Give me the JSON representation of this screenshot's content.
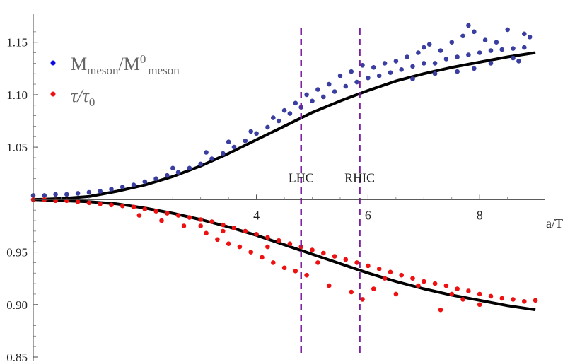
{
  "chart_data": {
    "type": "scatter",
    "xlabel": "a/T",
    "ylabel": "",
    "xlim": [
      0,
      9.1
    ],
    "ylim": [
      0.85,
      1.17
    ],
    "x_ticks": [
      {
        "value": 4,
        "label": "4"
      },
      {
        "value": 6,
        "label": "6"
      },
      {
        "value": 8,
        "label": "8"
      }
    ],
    "y_ticks": [
      {
        "value": 0.85,
        "label": "0.85"
      },
      {
        "value": 0.9,
        "label": "0.90"
      },
      {
        "value": 0.95,
        "label": "0.95"
      },
      {
        "value": 1.05,
        "label": "1.05"
      },
      {
        "value": 1.1,
        "label": "1.10"
      },
      {
        "value": 1.15,
        "label": "1.15"
      }
    ],
    "baseline_y": 1.0,
    "legend": {
      "placement": "top-left",
      "entries": [
        {
          "name": "M_meson/M^0_meson",
          "base": "M",
          "sub1": "meson",
          "slash": "/M",
          "sup": "0",
          "sub2": "meson",
          "color": "#0a0ae6"
        },
        {
          "name": "τ/τ0",
          "base": "τ/τ",
          "sub": "0",
          "color": "#ee1111"
        }
      ]
    },
    "series": [
      {
        "name": "M_meson/M^0_meson",
        "color": "#3a3ea0",
        "points": [
          [
            0.0,
            1.004
          ],
          [
            0.2,
            1.004
          ],
          [
            0.4,
            1.005
          ],
          [
            0.6,
            1.005
          ],
          [
            0.8,
            1.006
          ],
          [
            1.0,
            1.007
          ],
          [
            1.2,
            1.008
          ],
          [
            1.4,
            1.01
          ],
          [
            1.6,
            1.012
          ],
          [
            1.8,
            1.014
          ],
          [
            2.0,
            1.017
          ],
          [
            2.2,
            1.02
          ],
          [
            2.4,
            1.023
          ],
          [
            2.6,
            1.026
          ],
          [
            2.8,
            1.03
          ],
          [
            3.0,
            1.034
          ],
          [
            3.2,
            1.039
          ],
          [
            3.4,
            1.044
          ],
          [
            3.6,
            1.05
          ],
          [
            3.8,
            1.056
          ],
          [
            4.0,
            1.063
          ],
          [
            4.2,
            1.069
          ],
          [
            4.4,
            1.075
          ],
          [
            4.6,
            1.082
          ],
          [
            4.8,
            1.088
          ],
          [
            5.0,
            1.094
          ],
          [
            5.2,
            1.098
          ],
          [
            5.4,
            1.103
          ],
          [
            5.6,
            1.108
          ],
          [
            5.8,
            1.112
          ],
          [
            6.0,
            1.116
          ],
          [
            6.2,
            1.118
          ],
          [
            6.4,
            1.121
          ],
          [
            6.6,
            1.124
          ],
          [
            6.8,
            1.127
          ],
          [
            7.0,
            1.13
          ],
          [
            7.2,
            1.13
          ],
          [
            7.4,
            1.134
          ],
          [
            7.6,
            1.136
          ],
          [
            7.8,
            1.138
          ],
          [
            8.0,
            1.14
          ],
          [
            8.2,
            1.142
          ],
          [
            8.4,
            1.143
          ],
          [
            8.6,
            1.144
          ],
          [
            8.8,
            1.145
          ],
          [
            2.5,
            1.03
          ],
          [
            3.1,
            1.045
          ],
          [
            3.5,
            1.055
          ],
          [
            3.9,
            1.065
          ],
          [
            4.3,
            1.078
          ],
          [
            4.5,
            1.085
          ],
          [
            4.7,
            1.092
          ],
          [
            4.9,
            1.1
          ],
          [
            5.1,
            1.105
          ],
          [
            5.3,
            1.11
          ],
          [
            5.5,
            1.118
          ],
          [
            5.7,
            1.122
          ],
          [
            5.9,
            1.128
          ],
          [
            6.1,
            1.126
          ],
          [
            6.3,
            1.13
          ],
          [
            6.5,
            1.132
          ],
          [
            6.7,
            1.136
          ],
          [
            6.9,
            1.14
          ],
          [
            7.0,
            1.145
          ],
          [
            7.1,
            1.148
          ],
          [
            7.3,
            1.142
          ],
          [
            7.5,
            1.15
          ],
          [
            7.7,
            1.156
          ],
          [
            7.9,
            1.16
          ],
          [
            8.1,
            1.152
          ],
          [
            8.3,
            1.15
          ],
          [
            8.5,
            1.162
          ],
          [
            8.6,
            1.135
          ],
          [
            8.8,
            1.158
          ],
          [
            8.9,
            1.155
          ],
          [
            6.8,
            1.115
          ],
          [
            7.2,
            1.12
          ],
          [
            7.6,
            1.122
          ],
          [
            7.9,
            1.125
          ],
          [
            8.2,
            1.13
          ],
          [
            8.7,
            1.132
          ],
          [
            7.8,
            1.166
          ]
        ]
      },
      {
        "name": "τ/τ0",
        "color": "#ee1111",
        "points": [
          [
            0.0,
            1.0
          ],
          [
            0.2,
            1.0
          ],
          [
            0.4,
            0.999
          ],
          [
            0.6,
            0.999
          ],
          [
            0.8,
            0.998
          ],
          [
            1.0,
            0.997
          ],
          [
            1.2,
            0.996
          ],
          [
            1.4,
            0.995
          ],
          [
            1.6,
            0.994
          ],
          [
            1.8,
            0.993
          ],
          [
            2.0,
            0.991
          ],
          [
            2.2,
            0.989
          ],
          [
            2.4,
            0.987
          ],
          [
            2.6,
            0.985
          ],
          [
            2.8,
            0.983
          ],
          [
            3.0,
            0.981
          ],
          [
            3.2,
            0.979
          ],
          [
            3.4,
            0.976
          ],
          [
            3.6,
            0.973
          ],
          [
            3.8,
            0.97
          ],
          [
            4.0,
            0.967
          ],
          [
            4.2,
            0.964
          ],
          [
            4.4,
            0.961
          ],
          [
            4.6,
            0.958
          ],
          [
            4.8,
            0.955
          ],
          [
            5.0,
            0.952
          ],
          [
            5.2,
            0.949
          ],
          [
            5.4,
            0.946
          ],
          [
            5.6,
            0.943
          ],
          [
            5.8,
            0.94
          ],
          [
            6.0,
            0.937
          ],
          [
            6.2,
            0.934
          ],
          [
            6.4,
            0.931
          ],
          [
            6.6,
            0.928
          ],
          [
            6.8,
            0.925
          ],
          [
            7.0,
            0.922
          ],
          [
            7.2,
            0.92
          ],
          [
            7.4,
            0.918
          ],
          [
            7.6,
            0.915
          ],
          [
            7.8,
            0.913
          ],
          [
            8.0,
            0.91
          ],
          [
            8.2,
            0.908
          ],
          [
            8.4,
            0.906
          ],
          [
            8.6,
            0.905
          ],
          [
            8.8,
            0.903
          ],
          [
            9.0,
            0.904
          ],
          [
            1.9,
            0.985
          ],
          [
            2.3,
            0.98
          ],
          [
            2.7,
            0.975
          ],
          [
            3.1,
            0.968
          ],
          [
            3.3,
            0.962
          ],
          [
            3.5,
            0.958
          ],
          [
            3.7,
            0.955
          ],
          [
            3.9,
            0.95
          ],
          [
            4.1,
            0.945
          ],
          [
            4.3,
            0.94
          ],
          [
            4.5,
            0.935
          ],
          [
            4.7,
            0.932
          ],
          [
            4.9,
            0.928
          ],
          [
            5.3,
            0.918
          ],
          [
            5.7,
            0.912
          ],
          [
            5.9,
            0.905
          ],
          [
            6.1,
            0.915
          ],
          [
            6.5,
            0.91
          ],
          [
            7.3,
            0.895
          ],
          [
            7.7,
            0.905
          ],
          [
            8.0,
            0.9
          ],
          [
            3.0,
            0.975
          ],
          [
            3.4,
            0.97
          ],
          [
            4.2,
            0.955
          ],
          [
            5.1,
            0.94
          ],
          [
            6.3,
            0.925
          ],
          [
            6.9,
            0.918
          ],
          [
            7.5,
            0.91
          ]
        ]
      }
    ],
    "fit_curves": [
      {
        "name": "M_meson/M^0_meson fit",
        "color": "#000000",
        "points": [
          [
            0.0,
            1.0
          ],
          [
            0.5,
            1.001
          ],
          [
            1.0,
            1.003
          ],
          [
            1.5,
            1.008
          ],
          [
            2.0,
            1.014
          ],
          [
            2.5,
            1.022
          ],
          [
            3.0,
            1.032
          ],
          [
            3.5,
            1.044
          ],
          [
            4.0,
            1.057
          ],
          [
            4.5,
            1.07
          ],
          [
            5.0,
            1.083
          ],
          [
            5.5,
            1.094
          ],
          [
            6.0,
            1.104
          ],
          [
            6.5,
            1.113
          ],
          [
            7.0,
            1.12
          ],
          [
            7.5,
            1.126
          ],
          [
            8.0,
            1.131
          ],
          [
            8.5,
            1.136
          ],
          [
            9.0,
            1.14
          ]
        ]
      },
      {
        "name": "τ/τ0 fit",
        "color": "#000000",
        "points": [
          [
            0.0,
            1.0
          ],
          [
            0.5,
            0.999
          ],
          [
            1.0,
            0.998
          ],
          [
            1.5,
            0.996
          ],
          [
            2.0,
            0.992
          ],
          [
            2.5,
            0.987
          ],
          [
            3.0,
            0.981
          ],
          [
            3.5,
            0.974
          ],
          [
            4.0,
            0.966
          ],
          [
            4.5,
            0.957
          ],
          [
            5.0,
            0.948
          ],
          [
            5.5,
            0.939
          ],
          [
            6.0,
            0.93
          ],
          [
            6.5,
            0.922
          ],
          [
            7.0,
            0.915
          ],
          [
            7.5,
            0.909
          ],
          [
            8.0,
            0.904
          ],
          [
            8.5,
            0.899
          ],
          [
            9.0,
            0.895
          ]
        ]
      }
    ],
    "vlines": [
      {
        "x": 4.8,
        "label": "LHC",
        "color": "#7b1fa2"
      },
      {
        "x": 5.85,
        "label": "RHIC",
        "color": "#7b1fa2"
      }
    ]
  }
}
